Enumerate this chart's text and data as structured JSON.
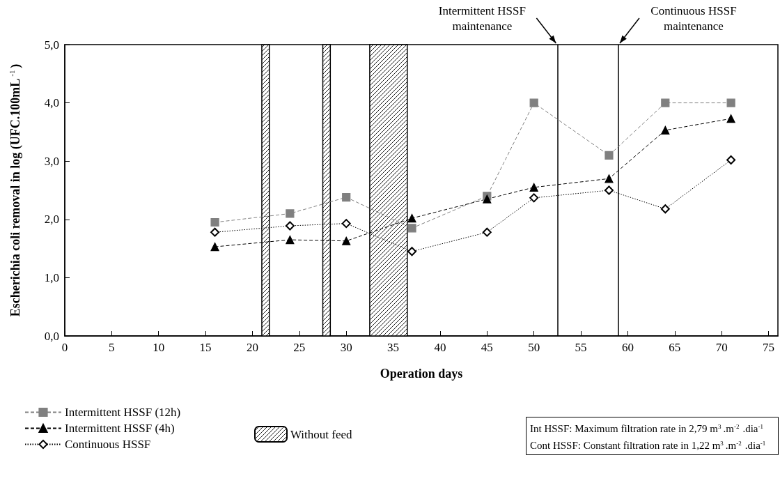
{
  "chart_data": {
    "type": "line",
    "xlabel": "Operation days",
    "ylabel": "Escherichia coli removal in log (UFC.100mL$^{-1}$)",
    "x": [
      16,
      24,
      30,
      37,
      45,
      50,
      58,
      64,
      71
    ],
    "series": [
      {
        "name": "Intermittent HSSF (12h)",
        "color": "#808080",
        "marker": "square",
        "line_style": "dashed",
        "values": [
          1.95,
          2.1,
          2.38,
          1.85,
          2.4,
          4.0,
          3.1,
          4.0,
          4.0
        ]
      },
      {
        "name": "Intermittent HSSF (4h)",
        "color": "#000000",
        "marker": "triangle",
        "line_style": "dashed",
        "values": [
          1.53,
          1.65,
          1.63,
          2.02,
          2.35,
          2.55,
          2.7,
          3.53,
          3.73
        ]
      },
      {
        "name": "Continuous HSSF",
        "color": "#000000",
        "marker": "diamond",
        "line_style": "dotted",
        "values": [
          1.78,
          1.89,
          1.93,
          1.45,
          1.78,
          2.37,
          2.5,
          2.18,
          3.02
        ]
      }
    ],
    "xlim": [
      0,
      76
    ],
    "xticks": [
      0,
      5,
      10,
      15,
      20,
      25,
      30,
      35,
      40,
      45,
      50,
      55,
      60,
      65,
      70,
      75
    ],
    "ylim": [
      0,
      5
    ],
    "yticks": [
      {
        "value": 0,
        "label": "0,0"
      },
      {
        "value": 1,
        "label": "1,0"
      },
      {
        "value": 2,
        "label": "2,0"
      },
      {
        "value": 3,
        "label": "3,0"
      },
      {
        "value": 4,
        "label": "4,0"
      },
      {
        "value": 5,
        "label": "5,0"
      }
    ],
    "bands": [
      {
        "axis": "x",
        "from": 21,
        "to": 21.8,
        "label": "Without feed"
      },
      {
        "axis": "x",
        "from": 27.5,
        "to": 28.3
      },
      {
        "axis": "x",
        "from": 32.5,
        "to": 36.5
      }
    ],
    "ref_lines": [
      {
        "axis": "x",
        "value": 52.5
      },
      {
        "axis": "x",
        "value": 59
      }
    ],
    "annotations": [
      {
        "text": "Intermittent HSSF\nmaintenance",
        "x": 52.5,
        "y": 5
      },
      {
        "text": "Continuous HSSF\nmaintenance",
        "x": 59,
        "y": 5
      },
      "Int HSSF: Maximum filtration rate in 2,79 m$^{3}$.m$^{-2}$.dia$^{-1}$",
      "Cont HSSF: Constant filtration rate in 1,22 m$^{3}$.m$^{-2}$.dia$^{-1}$"
    ],
    "grid": false,
    "legend": "bottom left"
  }
}
